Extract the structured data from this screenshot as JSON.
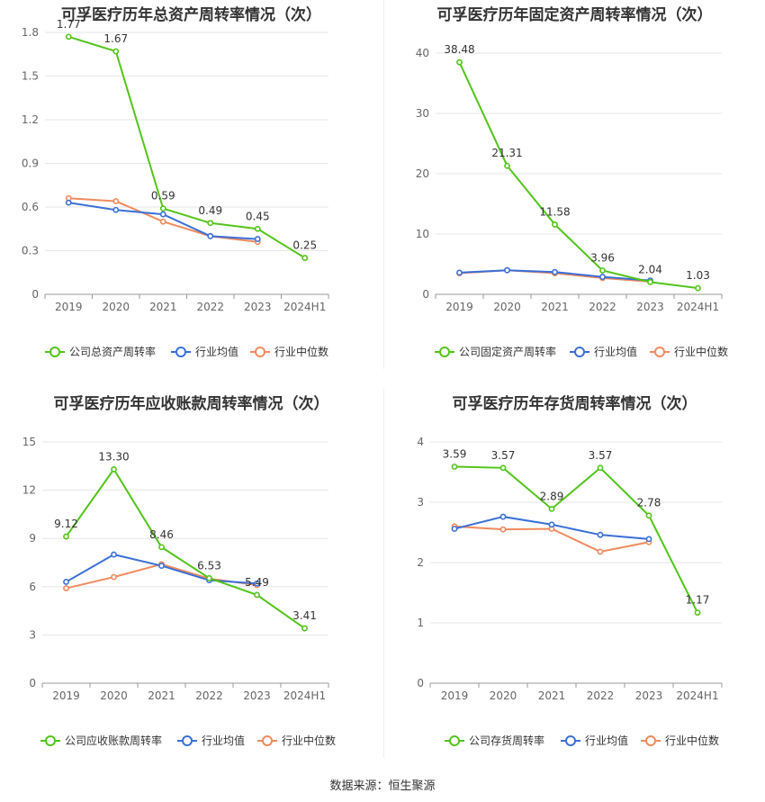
{
  "colors": {
    "company": "#52c41a",
    "avg": "#3a6fd8",
    "median": "#f08a5d",
    "axis": "#666666",
    "grid": "#e6e6e6",
    "label": "#333333"
  },
  "source": "数据来源：恒生聚源",
  "charts": [
    {
      "title": "可孚医疗历年总资产周转率情况（次）",
      "legend": [
        "公司总资产周转率",
        "行业均值",
        "行业中位数"
      ],
      "chart_data": {
        "type": "line",
        "categories": [
          "2019",
          "2020",
          "2021",
          "2022",
          "2023",
          "2024H1"
        ],
        "ylim": [
          0,
          1.8
        ],
        "yticks": [
          0,
          0.3,
          0.6,
          0.9,
          1.2,
          1.5,
          1.8
        ],
        "ytick_labels": [
          "0",
          "0.3",
          "0.6",
          "0.9",
          "1.2",
          "1.5",
          "1.8"
        ],
        "series": [
          {
            "name": "公司总资产周转率",
            "values": [
              1.77,
              1.67,
              0.59,
              0.49,
              0.45,
              0.25
            ],
            "labels": [
              "1.77",
              "1.67",
              "0.59",
              "0.49",
              "0.45",
              "0.25"
            ]
          },
          {
            "name": "行业均值",
            "values": [
              0.63,
              0.58,
              0.55,
              0.4,
              0.38,
              null
            ]
          },
          {
            "name": "行业中位数",
            "values": [
              0.66,
              0.64,
              0.5,
              0.4,
              0.36,
              null
            ]
          }
        ]
      }
    },
    {
      "title": "可孚医疗历年固定资产周转率情况（次）",
      "legend": [
        "公司固定资产周转率",
        "行业均值",
        "行业中位数"
      ],
      "chart_data": {
        "type": "line",
        "categories": [
          "2019",
          "2020",
          "2021",
          "2022",
          "2023",
          "2024H1"
        ],
        "ylim": [
          0,
          40
        ],
        "yticks": [
          0,
          10,
          20,
          30,
          40
        ],
        "ytick_labels": [
          "0",
          "10",
          "20",
          "30",
          "40"
        ],
        "series": [
          {
            "name": "公司固定资产周转率",
            "values": [
              38.48,
              21.31,
              11.58,
              3.96,
              2.04,
              1.03
            ],
            "labels": [
              "38.48",
              "21.31",
              "11.58",
              "3.96",
              "2.04",
              "1.03"
            ]
          },
          {
            "name": "行业均值",
            "values": [
              3.6,
              4.0,
              3.7,
              2.9,
              2.3,
              null
            ]
          },
          {
            "name": "行业中位数",
            "values": [
              3.5,
              4.0,
              3.5,
              2.7,
              2.1,
              null
            ]
          }
        ]
      }
    },
    {
      "title": "可孚医疗历年应收账款周转率情况（次）",
      "legend": [
        "公司应收账款周转率",
        "行业均值",
        "行业中位数"
      ],
      "chart_data": {
        "type": "line",
        "categories": [
          "2019",
          "2020",
          "2021",
          "2022",
          "2023",
          "2024H1"
        ],
        "ylim": [
          0,
          15
        ],
        "yticks": [
          0,
          3,
          6,
          9,
          12,
          15
        ],
        "ytick_labels": [
          "0",
          "3",
          "6",
          "9",
          "12",
          "15"
        ],
        "series": [
          {
            "name": "公司应收账款周转率",
            "values": [
              9.12,
              13.3,
              8.46,
              6.53,
              5.49,
              3.41
            ],
            "labels": [
              "9.12",
              "13.30",
              "8.46",
              "6.53",
              "5.49",
              "3.41"
            ]
          },
          {
            "name": "行业均值",
            "values": [
              6.3,
              8.0,
              7.3,
              6.4,
              6.2,
              null
            ]
          },
          {
            "name": "行业中位数",
            "values": [
              5.9,
              6.6,
              7.4,
              6.5,
              6.1,
              null
            ]
          }
        ]
      }
    },
    {
      "title": "可孚医疗历年存货周转率情况（次）",
      "legend": [
        "公司存货周转率",
        "行业均值",
        "行业中位数"
      ],
      "chart_data": {
        "type": "line",
        "categories": [
          "2019",
          "2020",
          "2021",
          "2022",
          "2023",
          "2024H1"
        ],
        "ylim": [
          0,
          4
        ],
        "yticks": [
          0,
          1,
          2,
          3,
          4
        ],
        "ytick_labels": [
          "0",
          "1",
          "2",
          "3",
          "4"
        ],
        "series": [
          {
            "name": "公司存货周转率",
            "values": [
              3.59,
              3.57,
              2.89,
              3.57,
              2.78,
              1.17
            ],
            "labels": [
              "3.59",
              "3.57",
              "2.89",
              "3.57",
              "2.78",
              "1.17"
            ]
          },
          {
            "name": "行业均值",
            "values": [
              2.56,
              2.76,
              2.63,
              2.46,
              2.39,
              null
            ]
          },
          {
            "name": "行业中位数",
            "values": [
              2.6,
              2.55,
              2.56,
              2.18,
              2.34,
              null
            ]
          }
        ]
      }
    }
  ]
}
